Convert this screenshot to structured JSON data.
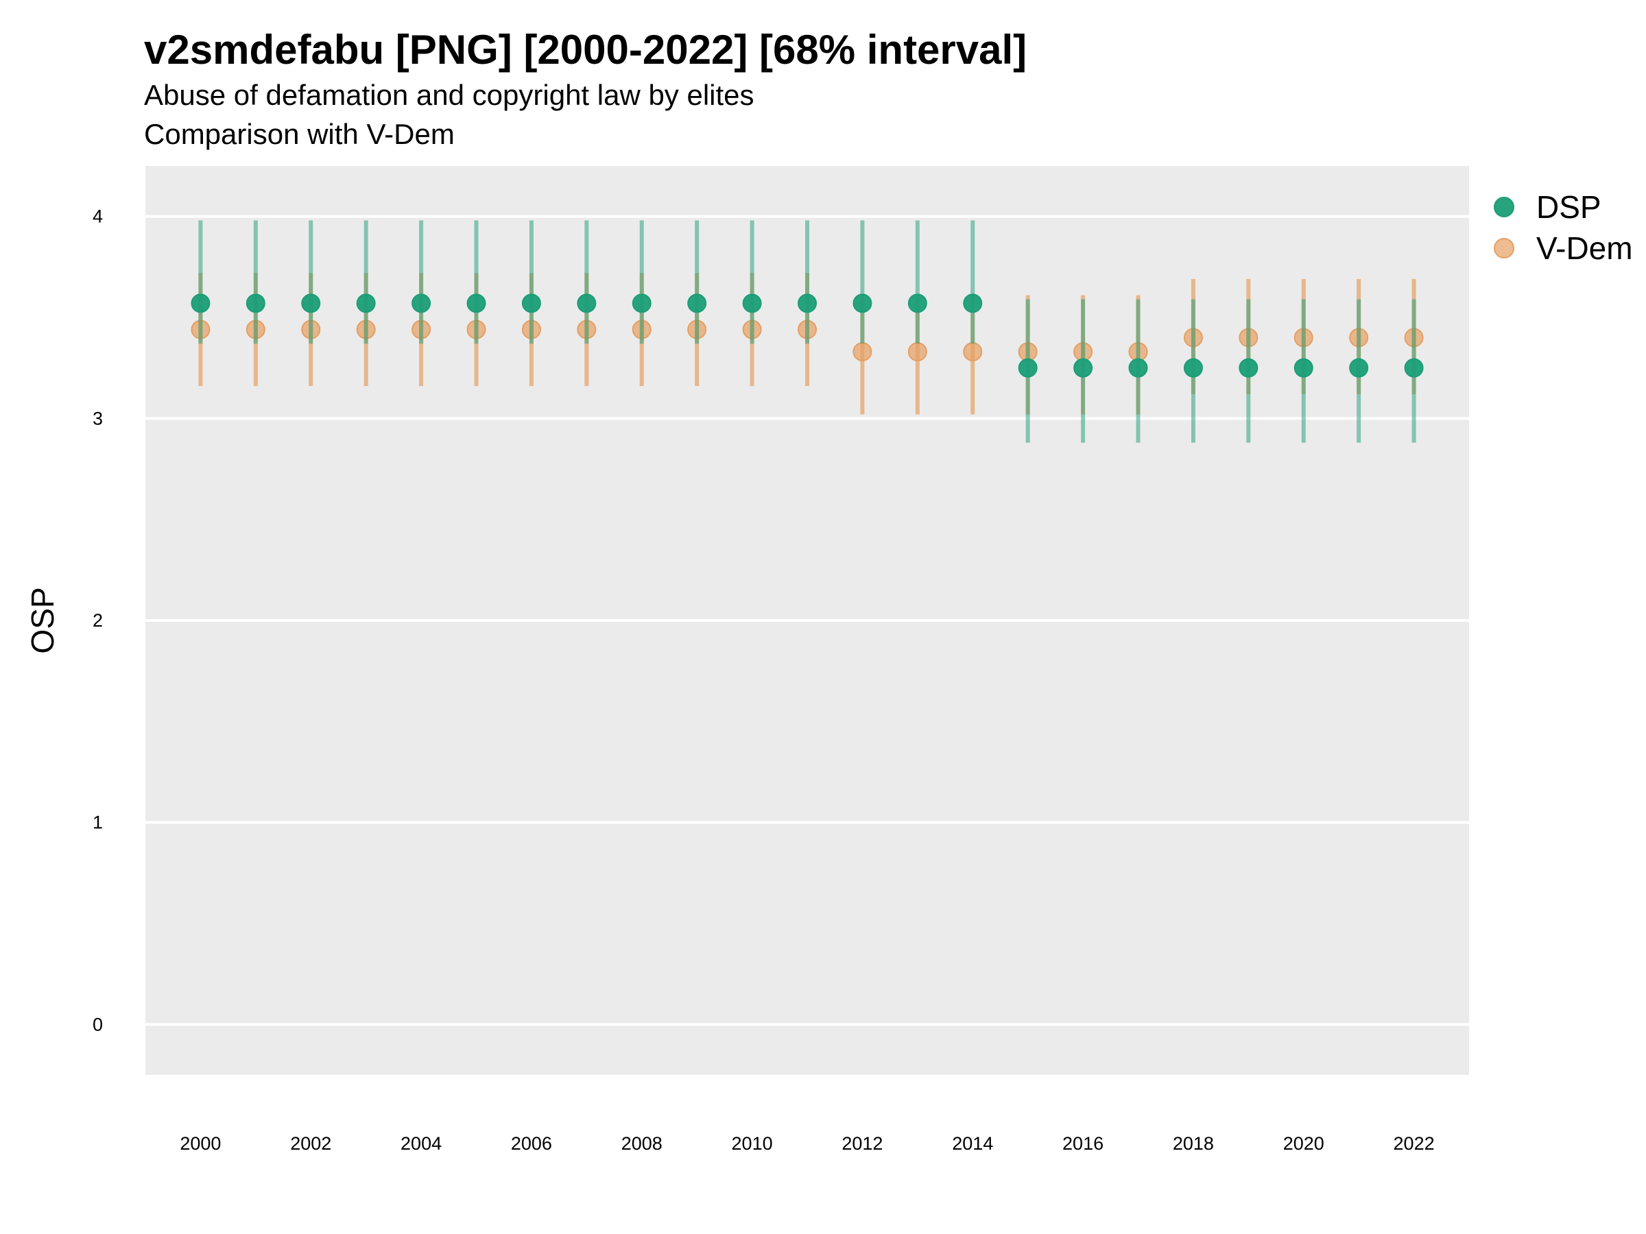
{
  "chart_data": {
    "type": "scatter",
    "title": "v2smdefabu [PNG] [2000-2022] [68% interval]",
    "subtitle": [
      "Abuse of defamation and copyright law by elites",
      "Comparison with V-Dem"
    ],
    "xlabel": "",
    "ylabel": "OSP",
    "ylim": [
      -0.25,
      4.25
    ],
    "yticks": [
      0,
      1,
      2,
      3,
      4
    ],
    "xlim": [
      1999,
      2023
    ],
    "xticks": [
      2000,
      2002,
      2004,
      2006,
      2008,
      2010,
      2012,
      2014,
      2016,
      2018,
      2020,
      2022
    ],
    "grid": true,
    "legend_position": "right",
    "colors": {
      "DSP": "#1b9e77",
      "V-Dem": "#e69f63",
      "panel": "#ebebeb",
      "grid": "#ffffff"
    },
    "series": [
      {
        "name": "DSP",
        "x": [
          2000,
          2001,
          2002,
          2003,
          2004,
          2005,
          2006,
          2007,
          2008,
          2009,
          2010,
          2011,
          2012,
          2013,
          2014,
          2015,
          2016,
          2017,
          2018,
          2019,
          2020,
          2021,
          2022
        ],
        "y": [
          3.57,
          3.57,
          3.57,
          3.57,
          3.57,
          3.57,
          3.57,
          3.57,
          3.57,
          3.57,
          3.57,
          3.57,
          3.57,
          3.57,
          3.57,
          3.25,
          3.25,
          3.25,
          3.25,
          3.25,
          3.25,
          3.25,
          3.25
        ],
        "lower": [
          3.37,
          3.37,
          3.37,
          3.37,
          3.37,
          3.37,
          3.37,
          3.37,
          3.37,
          3.37,
          3.37,
          3.37,
          3.37,
          3.37,
          3.37,
          2.88,
          2.88,
          2.88,
          2.88,
          2.88,
          2.88,
          2.88,
          2.88
        ],
        "upper": [
          3.98,
          3.98,
          3.98,
          3.98,
          3.98,
          3.98,
          3.98,
          3.98,
          3.98,
          3.98,
          3.98,
          3.98,
          3.98,
          3.98,
          3.98,
          3.59,
          3.59,
          3.59,
          3.59,
          3.59,
          3.59,
          3.59,
          3.59
        ]
      },
      {
        "name": "V-Dem",
        "x": [
          2000,
          2001,
          2002,
          2003,
          2004,
          2005,
          2006,
          2007,
          2008,
          2009,
          2010,
          2011,
          2012,
          2013,
          2014,
          2015,
          2016,
          2017,
          2018,
          2019,
          2020,
          2021,
          2022
        ],
        "y": [
          3.44,
          3.44,
          3.44,
          3.44,
          3.44,
          3.44,
          3.44,
          3.44,
          3.44,
          3.44,
          3.44,
          3.44,
          3.33,
          3.33,
          3.33,
          3.33,
          3.33,
          3.33,
          3.4,
          3.4,
          3.4,
          3.4,
          3.4
        ],
        "lower": [
          3.16,
          3.16,
          3.16,
          3.16,
          3.16,
          3.16,
          3.16,
          3.16,
          3.16,
          3.16,
          3.16,
          3.16,
          3.02,
          3.02,
          3.02,
          3.02,
          3.02,
          3.02,
          3.12,
          3.12,
          3.12,
          3.12,
          3.12
        ],
        "upper": [
          3.72,
          3.72,
          3.72,
          3.72,
          3.72,
          3.72,
          3.72,
          3.72,
          3.72,
          3.72,
          3.72,
          3.72,
          3.59,
          3.59,
          3.59,
          3.61,
          3.61,
          3.61,
          3.69,
          3.69,
          3.69,
          3.69,
          3.69
        ]
      }
    ]
  }
}
